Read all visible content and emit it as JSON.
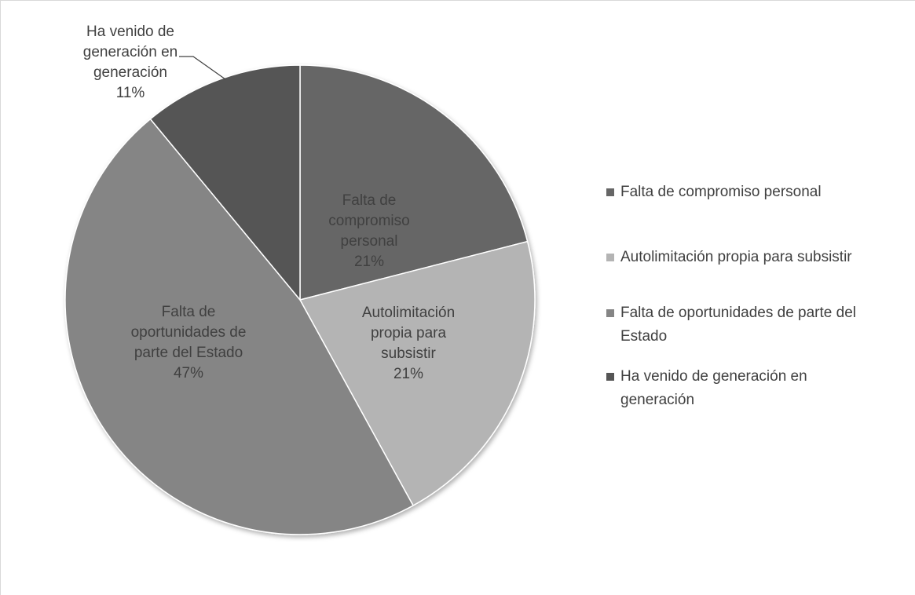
{
  "chart_data": {
    "type": "pie",
    "categories": [
      "Falta de compromiso personal",
      "Autolimitación propia para subsistir",
      "Falta de oportunidades de parte del Estado",
      "Ha venido de generación en generación"
    ],
    "values": [
      21,
      21,
      47,
      11
    ],
    "value_labels": [
      "21%",
      "21%",
      "47%",
      "11%"
    ],
    "colors": [
      "#666666",
      "#b4b4b4",
      "#858585",
      "#555555"
    ],
    "legend": "right"
  }
}
